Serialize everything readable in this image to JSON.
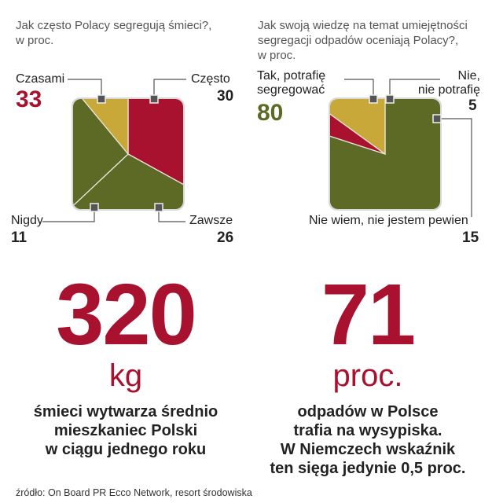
{
  "chart_data": [
    {
      "type": "pie",
      "title": "Jak często Polacy segregują śmieci?, w proc.",
      "categories": [
        "Czasami",
        "Często",
        "Zawsze",
        "Nigdy"
      ],
      "values": [
        33,
        30,
        26,
        11
      ],
      "colors": [
        "#a8122f",
        "#5c6a26",
        "#5c6a26",
        "#c9a83a"
      ],
      "shape": "rounded-square"
    },
    {
      "type": "pie",
      "title": "Jak swoją wiedzę na temat umiejętności segregacji odpadów oceniają Polacy?, w proc.",
      "categories": [
        "Tak, potrafię segregować",
        "Nie, nie potrafię",
        "Nie wiem, nie jestem pewien"
      ],
      "values": [
        80,
        5,
        15
      ],
      "colors": [
        "#5c6a26",
        "#a8122f",
        "#c9a83a"
      ],
      "shape": "rounded-square"
    }
  ],
  "texts": {
    "q1_line1": "Jak często Polacy segregują śmieci?,",
    "q1_line2": "w proc.",
    "q2_line1": "Jak swoją wiedzę na temat umiejętności",
    "q2_line2": "segregacji odpadów oceniają Polacy?,",
    "q2_line3": "w proc.",
    "c1_czasami": "Czasami",
    "c1_czasami_val": "33",
    "c1_czesto": "Często",
    "c1_czesto_val": "30",
    "c1_nigdy": "Nigdy",
    "c1_nigdy_val": "11",
    "c1_zawsze": "Zawsze",
    "c1_zawsze_val": "26",
    "c2_tak_line1": "Tak, potrafię",
    "c2_tak_line2": "segregować",
    "c2_tak_val": "80",
    "c2_nie_line1": "Nie,",
    "c2_nie_line2": "nie potrafię",
    "c2_nie_val": "5",
    "c2_niewiem": "Nie wiem, nie jestem pewien",
    "c2_niewiem_val": "15"
  },
  "stats": {
    "left_number": "320",
    "left_unit": "kg",
    "left_desc": [
      "śmieci wytwarza średnio",
      "mieszkaniec Polski",
      "w ciągu jednego roku"
    ],
    "right_number": "71",
    "right_unit": "proc.",
    "right_desc": [
      "odpadów w Polsce",
      "trafia na wysypiska.",
      "W Niemczech wskaźnik",
      "ten sięga jedynie 0,5 proc."
    ]
  },
  "source": "źródło: On Board PR Ecco Network, resort środowiska"
}
